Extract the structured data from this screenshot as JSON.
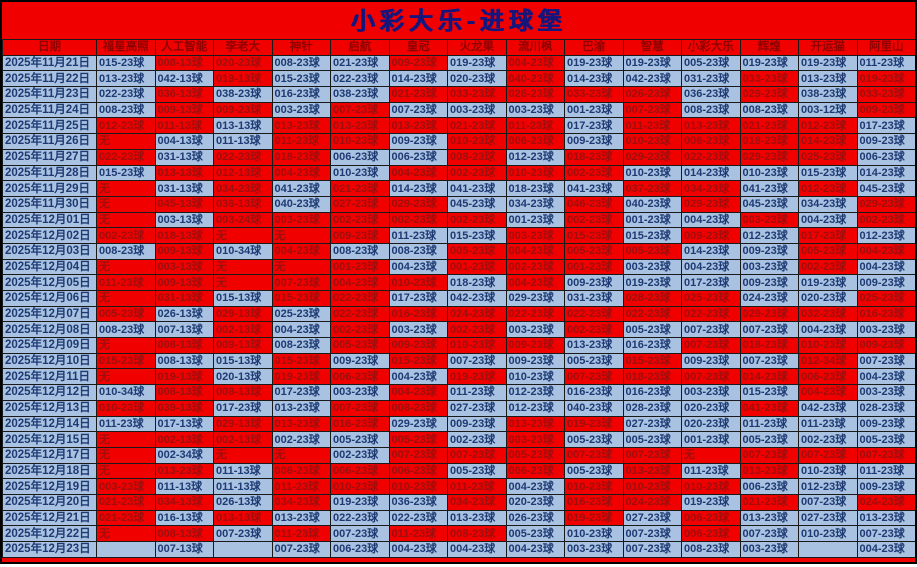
{
  "title": "小彩大乐-进球堡",
  "colors": {
    "page_red": "#f10000",
    "cell_blue": "#a9c2e1",
    "navy_text": "#1d3a73",
    "red_cell_text": "#a00d0d",
    "header_text": "#8f0000",
    "title_text": "#15157e",
    "grid_border": "#1a1a1a"
  },
  "columns": [
    "日期",
    "福星高照",
    "人工智能",
    "李老大",
    "神针",
    "启航",
    "皇冠",
    "火龙果",
    "流川枫",
    "巴渝",
    "智慧",
    "小彩大乐",
    "辉煌",
    "开运猫",
    "阿里山"
  ],
  "rows": [
    {
      "d": "2025年11月21日",
      "v": [
        "015-23球",
        "008-13球",
        "020-23球",
        "008-23球",
        "021-23球",
        "009-23球",
        "019-23球",
        "004-23球",
        "019-23球",
        "019-23球",
        "005-23球",
        "019-23球",
        "019-23球",
        "011-23球"
      ],
      "b": "brrbbrbrbbbbbb"
    },
    {
      "d": "2025年11月22日",
      "v": [
        "013-23球",
        "042-13球",
        "019-13球",
        "015-23球",
        "022-23球",
        "014-23球",
        "020-23球",
        "040-23球",
        "014-23球",
        "042-23球",
        "031-23球",
        "033-23球",
        "013-23球",
        "019-23球"
      ],
      "b": "bbrbbbbrbbbrbr"
    },
    {
      "d": "2025年11月23日",
      "v": [
        "022-23球",
        "036-13球",
        "038-23球",
        "016-23球",
        "038-23球",
        "021-23球",
        "033-23球",
        "026-23球",
        "033-23球",
        "026-23球",
        "036-23球",
        "029-23球",
        "038-23球",
        "033-23球"
      ],
      "b": "brbbbrrrrrbrbr"
    },
    {
      "d": "2025年11月24日",
      "v": [
        "008-23球",
        "009-13球",
        "009-23球",
        "003-23球",
        "007-23球",
        "007-23球",
        "003-23球",
        "003-23球",
        "001-23球",
        "007-23球",
        "008-23球",
        "008-23球",
        "003-12球",
        "009-23球"
      ],
      "b": "brrbrbbbbrbbbr"
    },
    {
      "d": "2025年11月25日",
      "v": [
        "012-23球",
        "011-13球",
        "013-13球",
        "013-23球",
        "013-23球",
        "013-23球",
        "021-23球",
        "011-23球",
        "017-23球",
        "011-23球",
        "013-23球",
        "021-23球",
        "012-23球",
        "017-23球"
      ],
      "b": "rrbrrrrrbrrrrb"
    },
    {
      "d": "2025年11月26日",
      "v": [
        "无",
        "004-13球",
        "011-13球",
        "011-23球",
        "010-23球",
        "009-23球",
        "010-23球",
        "006-23球",
        "009-23球",
        "010-23球",
        "006-23球",
        "018-23球",
        "014-23球",
        "009-23球"
      ],
      "b": "rbbrrbrrbrrrrb"
    },
    {
      "d": "2025年11月27日",
      "v": [
        "022-23球",
        "031-13球",
        "022-23球",
        "018-23球",
        "006-23球",
        "006-23球",
        "008-23球",
        "012-23球",
        "018-23球",
        "029-23球",
        "022-23球",
        "029-23球",
        "025-23球",
        "006-23球"
      ],
      "b": "rbrrbbrbrrrrrb"
    },
    {
      "d": "2025年11月28日",
      "v": [
        "015-23球",
        "013-13球",
        "012-13球",
        "004-23球",
        "010-23球",
        "004-23球",
        "002-23球",
        "010-23球",
        "002-23球",
        "010-23球",
        "014-23球",
        "010-23球",
        "015-23球",
        "014-23球"
      ],
      "b": "brrrbrrrrbbbbb"
    },
    {
      "d": "2025年11月29日",
      "v": [
        "无",
        "031-13球",
        "034-23球",
        "041-23球",
        "021-23球",
        "014-23球",
        "041-23球",
        "018-23球",
        "041-23球",
        "037-23球",
        "034-23球",
        "041-23球",
        "012-23球",
        "045-23球"
      ],
      "b": "rbrbrbbbbrrbrb"
    },
    {
      "d": "2025年11月30日",
      "v": [
        "无",
        "045-13球",
        "036-13球",
        "040-23球",
        "027-23球",
        "029-23球",
        "045-23球",
        "034-23球",
        "046-23球",
        "040-23球",
        "029-23球",
        "045-23球",
        "034-23球",
        "029-23球"
      ],
      "b": "rrrbrrbbrbrbbr"
    },
    {
      "d": "2025年12月01日",
      "v": [
        "无",
        "003-13球",
        "003-24球",
        "003-23球",
        "002-23球",
        "002-23球",
        "002-23球",
        "001-23球",
        "002-23球",
        "001-23球",
        "004-23球",
        "003-23球",
        "004-23球",
        "002-23球"
      ],
      "b": "rbrrrrrbrbbrbr"
    },
    {
      "d": "2025年12月02日",
      "v": [
        "002-23球",
        "018-13球",
        "无",
        "无",
        "009-23球",
        "011-23球",
        "015-23球",
        "003-23球",
        "015-23球",
        "015-23球",
        "009-23球",
        "012-23球",
        "017-23球",
        "012-23球"
      ],
      "b": "rrrrrbbrrbrbrb"
    },
    {
      "d": "2025年12月03日",
      "v": [
        "008-23球",
        "009-13球",
        "010-34球",
        "004-23球",
        "008-23球",
        "008-23球",
        "005-23球",
        "004-23球",
        "005-23球",
        "005-23球",
        "014-23球",
        "009-23球",
        "005-23球",
        "004-23球"
      ],
      "b": "brbrbbrrrrbbrr"
    },
    {
      "d": "2025年12月04日",
      "v": [
        "无",
        "003-13球",
        "无",
        "无",
        "001-23球",
        "004-23球",
        "001-23球",
        "002-23球",
        "001-23球",
        "003-23球",
        "004-23球",
        "003-23球",
        "002-23球",
        "004-23球"
      ],
      "b": "rrrrrbrrrbbbrb"
    },
    {
      "d": "2025年12月05日",
      "v": [
        "011-23球",
        "009-13球",
        "无",
        "007-23球",
        "004-23球",
        "010-23球",
        "018-23球",
        "004-23球",
        "009-23球",
        "019-23球",
        "017-23球",
        "009-23球",
        "019-23球",
        "009-23球"
      ],
      "b": "rrrrrrbrbbbbbb"
    },
    {
      "d": "2025年12月06日",
      "v": [
        "无",
        "031-13球",
        "015-13球",
        "015-23球",
        "022-23球",
        "017-23球",
        "042-23球",
        "029-23球",
        "031-23球",
        "028-23球",
        "025-23球",
        "024-23球",
        "020-23球",
        "025-23球"
      ],
      "b": "rrbrrbbbbrrbbr"
    },
    {
      "d": "2025年12月07日",
      "v": [
        "005-23球",
        "026-13球",
        "029-13球",
        "025-23球",
        "022-23球",
        "016-23球",
        "024-23球",
        "022-23球",
        "022-23球",
        "022-23球",
        "022-23球",
        "029-23球",
        "032-23球",
        "016-23球"
      ],
      "b": "rbrbrrrrrrrrrr"
    },
    {
      "d": "2025年12月08日",
      "v": [
        "008-23球",
        "007-13球",
        "002-13球",
        "004-23球",
        "002-23球",
        "003-23球",
        "002-23球",
        "003-23球",
        "002-23球",
        "005-23球",
        "007-23球",
        "007-23球",
        "004-23球",
        "003-23球"
      ],
      "b": "bbrbrbrbrbbbbb"
    },
    {
      "d": "2025年12月09日",
      "v": [
        "无",
        "008-13球",
        "009-13球",
        "008-23球",
        "005-23球",
        "009-23球",
        "010-23球",
        "009-23球",
        "013-23球",
        "016-23球",
        "007-23球",
        "018-23球",
        "010-23球",
        "009-23球"
      ],
      "b": "rrrbrrrrbbrrrr"
    },
    {
      "d": "2025年12月10日",
      "v": [
        "015-23球",
        "008-13球",
        "015-13球",
        "015-23球",
        "009-23球",
        "015-23球",
        "007-23球",
        "009-23球",
        "005-23球",
        "015-23球",
        "009-23球",
        "007-23球",
        "012-34球",
        "007-23球"
      ],
      "b": "rbbrbrbbbrbbrb"
    },
    {
      "d": "2025年12月11日",
      "v": [
        "无",
        "019-13球",
        "020-13球",
        "019-23球",
        "006-23球",
        "004-23球",
        "019-23球",
        "010-23球",
        "007-23球",
        "018-23球",
        "007-23球",
        "014-23球",
        "006-23球",
        "004-23球"
      ],
      "b": "rrbrrbrbrrrrrb"
    },
    {
      "d": "2025年12月12日",
      "v": [
        "010-34球",
        "008-13球",
        "008-13球",
        "017-23球",
        "003-23球",
        "004-23球",
        "011-23球",
        "012-23球",
        "016-23球",
        "016-23球",
        "003-23球",
        "015-23球",
        "004-23球",
        "003-23球"
      ],
      "b": "brrbbrbbbbbbrb"
    },
    {
      "d": "2025年12月13日",
      "v": [
        "010-23球",
        "039-13球",
        "017-23球",
        "013-23球",
        "007-23球",
        "008-23球",
        "027-23球",
        "012-23球",
        "040-23球",
        "028-23球",
        "020-23球",
        "041-23球",
        "042-23球",
        "028-23球"
      ],
      "b": "rrbbrrbbbbbrbb"
    },
    {
      "d": "2025年12月14日",
      "v": [
        "011-23球",
        "017-13球",
        "029-13球",
        "013-23球",
        "016-23球",
        "029-23球",
        "009-23球",
        "013-23球",
        "019-23球",
        "027-23球",
        "020-23球",
        "011-23球",
        "011-23球",
        "009-23球"
      ],
      "b": "bbrrrbbrrbbbbb"
    },
    {
      "d": "2025年12月15日",
      "v": [
        "无",
        "002-13球",
        "002-13球",
        "002-23球",
        "005-23球",
        "005-23球",
        "002-23球",
        "003-23球",
        "005-23球",
        "005-23球",
        "001-23球",
        "005-23球",
        "002-23球",
        "005-23球"
      ],
      "b": "rrrbbrbrbbbbbb"
    },
    {
      "d": "2025年12月17日",
      "v": [
        "无",
        "002-34球",
        "无",
        "无",
        "002-23球",
        "007-23球",
        "007-23球",
        "005-23球",
        "007-23球",
        "007-23球",
        "无",
        "007-23球",
        "007-23球",
        "007-23球"
      ],
      "b": "rbrrbrrrrrrrrr"
    },
    {
      "d": "2025年12月18日",
      "v": [
        "无",
        "013-23球",
        "011-13球",
        "006-23球",
        "006-23球",
        "006-23球",
        "005-23球",
        "006-23球",
        "005-23球",
        "013-23球",
        "011-23球",
        "013-23球",
        "010-23球",
        "011-23球"
      ],
      "b": "rrbrrrbrbrbrbb"
    },
    {
      "d": "2025年12月19日",
      "v": [
        "003-23球",
        "011-13球",
        "011-13球",
        "011-23球",
        "010-23球",
        "010-23球",
        "011-23球",
        "004-23球",
        "010-23球",
        "010-23球",
        "010-23球",
        "006-23球",
        "012-23球",
        "009-23球"
      ],
      "b": "rbbrrrrbrrrbbb"
    },
    {
      "d": "2025年12月20日",
      "v": [
        "021-23球",
        "034-13球",
        "026-13球",
        "034-23球",
        "019-23球",
        "036-23球",
        "034-23球",
        "020-23球",
        "016-23球",
        "024-23球",
        "019-23球",
        "021-23球",
        "007-23球",
        "024-23球"
      ],
      "b": "rrbrbbrbrrbrbr"
    },
    {
      "d": "2025年12月21日",
      "v": [
        "021-23球",
        "016-13球",
        "013-13球",
        "013-23球",
        "022-23球",
        "022-23球",
        "013-23球",
        "026-23球",
        "019-23球",
        "027-23球",
        "006-23球",
        "013-23球",
        "027-23球",
        "013-23球"
      ],
      "b": "rbrbbbbbrbrbbb"
    },
    {
      "d": "2025年12月22日",
      "v": [
        "无",
        "008-13球",
        "007-23球",
        "011-23球",
        "007-23球",
        "011-23球",
        "008-23球",
        "005-23球",
        "010-23球",
        "007-23球",
        "006-23球",
        "007-23球",
        "010-23球",
        "007-23球"
      ],
      "b": "rrbrbrrbbbrbbb"
    },
    {
      "d": "2025年12月23日",
      "v": [
        "",
        "007-13球",
        "",
        "007-23球",
        "006-23球",
        "004-23球",
        "004-23球",
        "004-23球",
        "003-23球",
        "007-23球",
        "008-23球",
        "003-23球",
        "",
        "004-23球"
      ],
      "b": "bbbbbbbbbbbbbb"
    }
  ]
}
